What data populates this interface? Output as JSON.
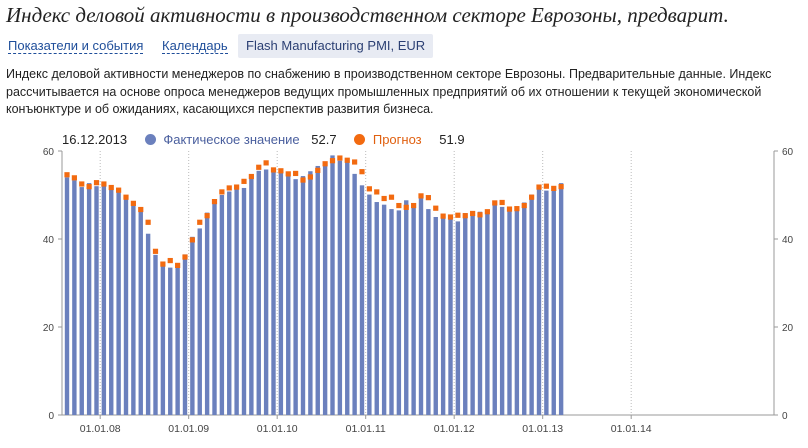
{
  "page": {
    "title": "Индекс деловой активности в производственном секторе Еврозоны, предварит."
  },
  "tabs": [
    {
      "label": "Показатели и события"
    },
    {
      "label": "Календарь"
    },
    {
      "label": "Flash Manufacturing PMI, EUR"
    }
  ],
  "description": "Индекс деловой активности менеджеров по снабжению в производственном секторе Еврозоны. Предварительные данные. Индекс рассчитывается на основе опроса менеджеров ведущих промышленных предприятий об их отношении к текущей экономической конъюнктуре и об ожиданиях, касающихся перспектив развития бизнеса.",
  "legend": {
    "date": "16.12.2013",
    "actual_label": "Фактическое значение",
    "actual_value": "52.7",
    "forecast_label": "Прогноз",
    "forecast_value": "51.9"
  },
  "colors": {
    "actual": "#6b80bd",
    "forecast": "#f26a10",
    "title": "#222222",
    "link": "#1f4e9a",
    "grid": "#bbbbbb"
  },
  "chart_data": {
    "type": "bar",
    "title": "",
    "xlabel": "",
    "ylabel": "",
    "ylim": [
      0,
      60
    ],
    "yticks": [
      0,
      20,
      40,
      60
    ],
    "x_tick_labels": [
      "01.01.08",
      "01.01.09",
      "01.01.10",
      "01.01.11",
      "01.01.12",
      "01.01.13",
      "01.01.14"
    ],
    "grid": {
      "vertical": true,
      "horizontal": false,
      "style": "dotted"
    },
    "legend_position": "top-left",
    "start_month": "2007-08",
    "series": [
      {
        "name": "Фактическое значение",
        "kind": "bar",
        "values": [
          54.0,
          53.3,
          51.8,
          52.7,
          52.0,
          52.4,
          52.0,
          50.9,
          49.2,
          47.6,
          46.3,
          41.2,
          36.4,
          34.4,
          33.5,
          33.9,
          36.5,
          40.5,
          42.4,
          46.0,
          48.2,
          50.0,
          50.8,
          51.3,
          51.6,
          53.7,
          55.5,
          55.8,
          55.9,
          55.8,
          55.0,
          53.6,
          54.3,
          55.4,
          56.6,
          57.1,
          59.0,
          57.8,
          57.5,
          54.8,
          52.2,
          50.1,
          48.4,
          47.8,
          46.8,
          46.5,
          48.8,
          48.1,
          49.5,
          46.8,
          45.0,
          44.7,
          45.1,
          44.0,
          45.9,
          45.3,
          46.2,
          46.6,
          47.9,
          47.3,
          46.7,
          46.6,
          48.3,
          50.1,
          51.3,
          51.0,
          51.5,
          52.7
        ]
      },
      {
        "name": "Прогноз",
        "kind": "dot",
        "values": [
          54.6,
          53.9,
          52.5,
          51.9,
          52.8,
          52.5,
          51.7,
          51.1,
          49.5,
          48.1,
          46.7,
          43.8,
          37.2,
          34.3,
          35.1,
          34.0,
          35.9,
          39.8,
          43.8,
          45.3,
          48.5,
          50.7,
          51.6,
          51.8,
          53.1,
          54.2,
          56.3,
          57.3,
          55.7,
          55.5,
          54.8,
          54.9,
          53.4,
          54.1,
          55.6,
          57.1,
          57.8,
          58.4,
          57.9,
          57.5,
          55.3,
          51.4,
          50.7,
          49.2,
          49.5,
          47.6,
          47.2,
          47.6,
          49.8,
          49.4,
          47.0,
          45.2,
          45.0,
          45.4,
          45.3,
          45.8,
          45.5,
          46.2,
          48.2,
          48.3,
          46.8,
          46.9,
          47.6,
          49.5,
          51.8,
          52.0,
          51.5,
          51.9
        ]
      }
    ]
  }
}
